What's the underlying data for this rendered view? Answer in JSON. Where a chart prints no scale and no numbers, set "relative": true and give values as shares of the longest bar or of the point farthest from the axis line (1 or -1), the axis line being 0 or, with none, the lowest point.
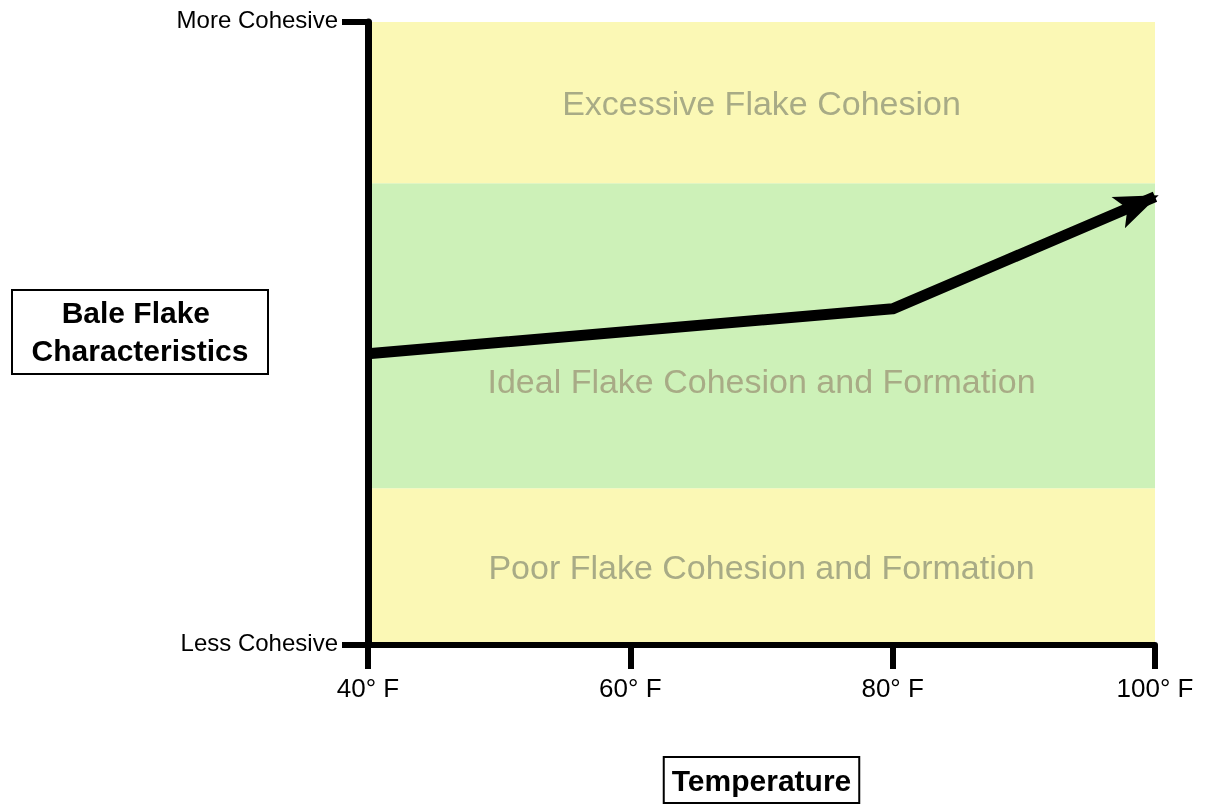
{
  "chart_data": {
    "type": "line",
    "xlabel": "Temperature",
    "ylabel": "Bale Flake Characteristics",
    "x": [
      40,
      80,
      100
    ],
    "series": [
      {
        "color": "#000000",
        "values": [
          0.65,
          0.75,
          1
        ]
      }
    ],
    "relative": true,
    "xlim": [
      40,
      100
    ],
    "xticks": [
      {
        "value": 40,
        "label": "40° F"
      },
      {
        "value": 60,
        "label": "60° F"
      },
      {
        "value": 80,
        "label": "80° F"
      },
      {
        "value": 100,
        "label": "100° F"
      }
    ],
    "annotations": [
      "Less Cohesive",
      "More Cohesive"
    ],
    "bands": [
      {
        "axis": "y",
        "from": 0,
        "to": 0.35,
        "label": "Poor Flake Cohesion and Formation",
        "color": "#fbf8b5"
      },
      {
        "axis": "y",
        "from": 0.35,
        "to": 1.03,
        "label": "Ideal Flake Cohesion and Formation",
        "color": "#cdf1b8"
      },
      {
        "axis": "y",
        "from": 1.03,
        "to": 1.39,
        "label": "Excessive Flake Cohesion",
        "color": "#fbf8b5"
      }
    ],
    "grid": false,
    "marker": "none",
    "line_style": "solid"
  }
}
